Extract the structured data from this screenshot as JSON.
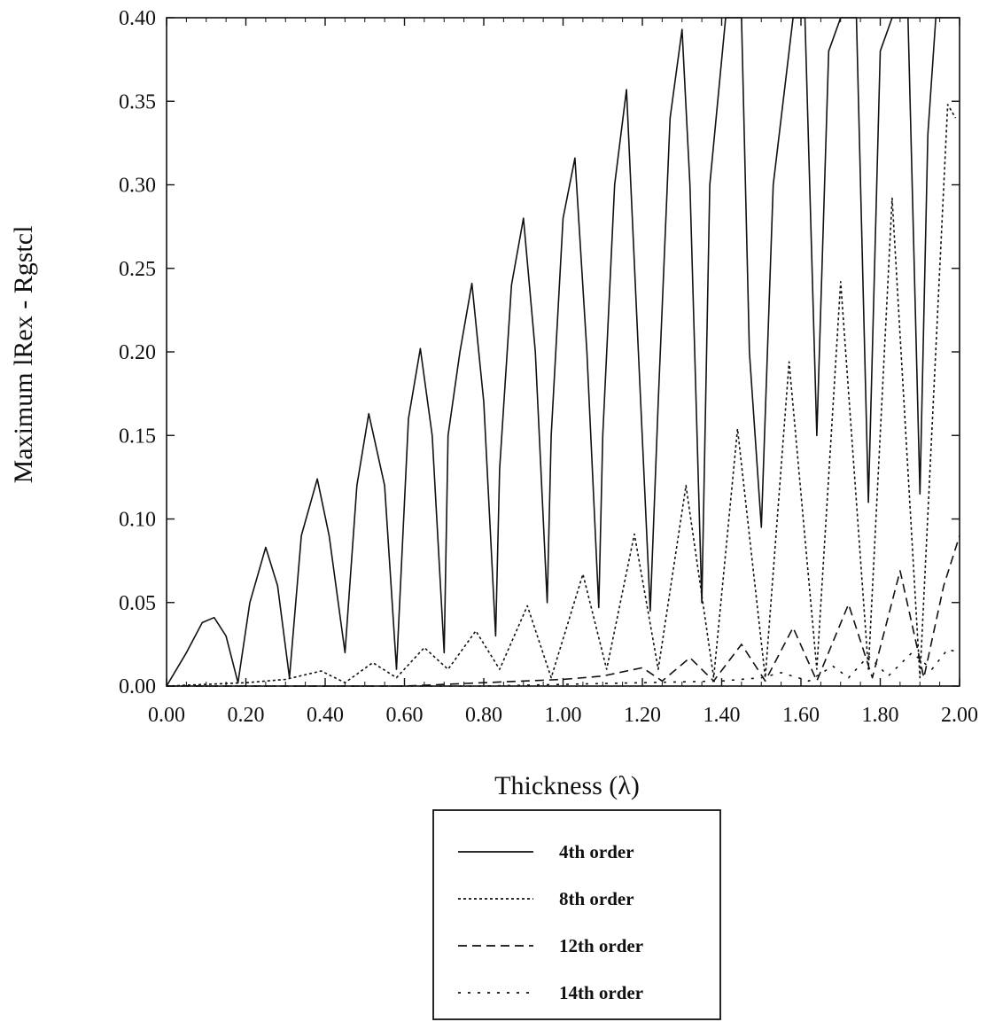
{
  "chart_data": {
    "type": "line",
    "title": "",
    "xlabel": "Thickness (λ)",
    "ylabel": "Maximum lRex - Rgstcl",
    "xlim": [
      0.0,
      2.0
    ],
    "ylim": [
      0.0,
      0.4
    ],
    "x_ticks": [
      "0.00",
      "0.20",
      "0.40",
      "0.60",
      "0.80",
      "1.00",
      "1.20",
      "1.40",
      "1.60",
      "1.80",
      "2.00"
    ],
    "y_ticks": [
      "0.00",
      "0.05",
      "0.10",
      "0.15",
      "0.20",
      "0.25",
      "0.30",
      "0.35",
      "0.40"
    ],
    "grid": false,
    "legend_position": "below",
    "series": [
      {
        "name": "4th order",
        "style": "solid",
        "color": "#111111",
        "x": [
          0.0,
          0.05,
          0.09,
          0.12,
          0.15,
          0.18,
          0.21,
          0.25,
          0.28,
          0.31,
          0.34,
          0.38,
          0.41,
          0.45,
          0.48,
          0.51,
          0.55,
          0.58,
          0.61,
          0.64,
          0.67,
          0.7,
          0.71,
          0.74,
          0.77,
          0.8,
          0.83,
          0.84,
          0.87,
          0.9,
          0.93,
          0.96,
          0.97,
          1.0,
          1.03,
          1.06,
          1.09,
          1.1,
          1.13,
          1.16,
          1.19,
          1.22,
          1.24,
          1.27,
          1.3,
          1.32,
          1.35,
          1.37,
          1.41,
          1.45,
          1.47,
          1.5,
          1.53,
          1.58,
          1.61,
          1.64,
          1.67,
          1.7,
          1.74,
          1.77,
          1.8,
          1.83,
          1.87,
          1.9,
          1.92,
          1.94,
          1.96,
          1.98
        ],
        "y": [
          0.0,
          0.02,
          0.038,
          0.041,
          0.03,
          0.002,
          0.05,
          0.083,
          0.06,
          0.005,
          0.09,
          0.124,
          0.09,
          0.02,
          0.12,
          0.163,
          0.12,
          0.01,
          0.16,
          0.202,
          0.15,
          0.02,
          0.15,
          0.2,
          0.241,
          0.17,
          0.03,
          0.13,
          0.24,
          0.28,
          0.2,
          0.05,
          0.15,
          0.28,
          0.316,
          0.2,
          0.047,
          0.15,
          0.3,
          0.357,
          0.2,
          0.045,
          0.17,
          0.34,
          0.393,
          0.3,
          0.05,
          0.3,
          0.4,
          0.4,
          0.2,
          0.095,
          0.3,
          0.4,
          0.4,
          0.15,
          0.38,
          0.4,
          0.4,
          0.11,
          0.38,
          0.4,
          0.4,
          0.115,
          0.33,
          0.4,
          0.4,
          0.4
        ]
      },
      {
        "name": "8th order",
        "style": "dotted",
        "color": "#111111",
        "x": [
          0.0,
          0.2,
          0.3,
          0.39,
          0.45,
          0.52,
          0.58,
          0.65,
          0.71,
          0.78,
          0.84,
          0.91,
          0.97,
          1.05,
          1.11,
          1.18,
          1.24,
          1.31,
          1.38,
          1.44,
          1.51,
          1.57,
          1.64,
          1.7,
          1.77,
          1.83,
          1.9,
          1.97,
          1.99
        ],
        "y": [
          0.0,
          0.002,
          0.004,
          0.009,
          0.002,
          0.014,
          0.005,
          0.023,
          0.01,
          0.033,
          0.01,
          0.048,
          0.005,
          0.067,
          0.01,
          0.091,
          0.01,
          0.12,
          0.005,
          0.154,
          0.005,
          0.194,
          0.01,
          0.242,
          0.01,
          0.292,
          0.005,
          0.348,
          0.34
        ]
      },
      {
        "name": "12th order",
        "style": "dashed",
        "color": "#111111",
        "x": [
          0.0,
          0.6,
          0.7,
          0.8,
          0.9,
          1.0,
          1.1,
          1.2,
          1.25,
          1.32,
          1.38,
          1.45,
          1.51,
          1.58,
          1.64,
          1.72,
          1.78,
          1.85,
          1.91,
          1.96,
          2.0
        ],
        "y": [
          0.0,
          0.0,
          0.001,
          0.002,
          0.003,
          0.004,
          0.006,
          0.011,
          0.003,
          0.017,
          0.003,
          0.025,
          0.003,
          0.035,
          0.003,
          0.049,
          0.005,
          0.069,
          0.005,
          0.06,
          0.09
        ]
      },
      {
        "name": "14th order",
        "style": "dotted-wide",
        "color": "#111111",
        "x": [
          0.0,
          0.8,
          1.0,
          1.2,
          1.4,
          1.5,
          1.55,
          1.62,
          1.68,
          1.72,
          1.77,
          1.82,
          1.88,
          1.93,
          1.97,
          2.0
        ],
        "y": [
          0.0,
          0.0,
          0.001,
          0.002,
          0.003,
          0.005,
          0.008,
          0.003,
          0.012,
          0.005,
          0.018,
          0.006,
          0.02,
          0.01,
          0.022,
          0.02
        ]
      }
    ]
  }
}
